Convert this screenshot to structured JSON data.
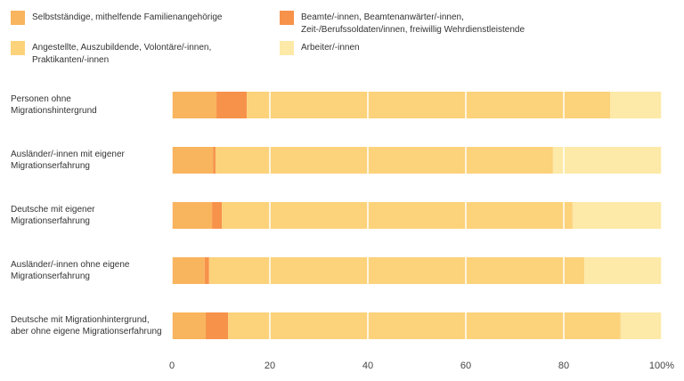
{
  "chart_data": {
    "type": "stacked-bar-horizontal",
    "categories": [
      "Personen ohne\nMigrationshintergrund",
      "Ausländer/-innen mit eigener\nMigrationserfahrung",
      "Deutsche mit eigener\nMigrationserfahrung",
      "Ausländer/-innen ohne eigene\nMigrationserfahrung",
      "Deutsche mit Migrationhintergrund,\naber ohne eigene Migrationserfahrung"
    ],
    "series": [
      {
        "name": "Selbstständige, mithelfende Familienangehörige",
        "color": "#f9b45e",
        "values": [
          9.1,
          8.4,
          8.2,
          6.7,
          6.9
        ]
      },
      {
        "name": "Beamte/-innen, Beamtenanwärter/-innen,\nZeit-/Berufssoldaten/innen, freiwillig Wehrdienstleistende",
        "color": "#f7924a",
        "values": [
          6.2,
          0.5,
          2.0,
          0.9,
          4.6
        ]
      },
      {
        "name": "Angestellte, Auszubildende, Volontäre/-innen,\nPraktikanten/-innen",
        "color": "#fcd27a",
        "values": [
          74.2,
          68.9,
          71.6,
          76.6,
          80.1
        ]
      },
      {
        "name": "Arbeiter/-innen",
        "color": "#fde9a8",
        "values": [
          10.5,
          22.2,
          18.2,
          15.8,
          8.4
        ]
      }
    ],
    "xlim": [
      0,
      100
    ],
    "xticks": [
      0,
      20,
      40,
      60,
      80,
      {
        "value": 100,
        "label": "100%"
      }
    ],
    "grid": true
  }
}
